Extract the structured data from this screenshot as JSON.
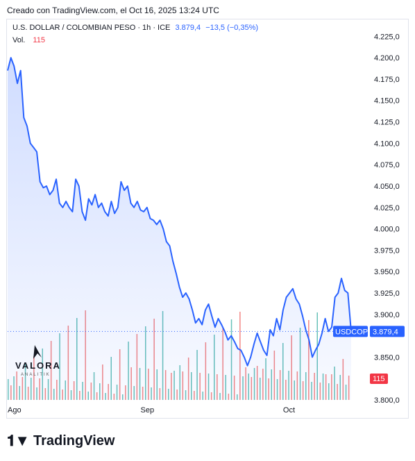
{
  "header": {
    "created": "Creado con TradingView.com, el Oct 16, 2025 13:24 UTC"
  },
  "legend": {
    "symbol": "U.S. DOLLAR / COLOMBIAN PESO · 1h · ICE",
    "last": "3.879,4",
    "change": "−13,5 (−0,35%)",
    "vol_label": "Vol.",
    "vol_value": "115"
  },
  "watermark": {
    "name": "VALORA",
    "sub": "ANALITIK"
  },
  "footer": {
    "brand": "TradingView"
  },
  "colors": {
    "line": "#2962ff",
    "area": "#dbe5fd",
    "vol_up": "#26a69a",
    "vol_down": "#ef5350",
    "badge": "#2962ff",
    "vol_badge": "#f23645"
  },
  "chart_data": {
    "type": "area",
    "symbol_badge": "USDCOP",
    "last_badge": "3.879,4",
    "vol_badge": "115",
    "ylim": [
      3800,
      4235
    ],
    "y_ticks": [
      3800,
      3825,
      3850,
      3875,
      3900,
      3925,
      3950,
      3975,
      4000,
      4025,
      4050,
      4075,
      4100,
      4125,
      4150,
      4175,
      4200,
      4225
    ],
    "y_tick_labels": [
      "3.800,0",
      "",
      "3.850,0",
      "",
      "3.900,0",
      "3.925,0",
      "3.950,0",
      "3.975,0",
      "4.000,0",
      "4.025,0",
      "4.050,0",
      "4.075,0",
      "4.100,0",
      "4.125,0",
      "4.150,0",
      "4.175,0",
      "4.200,0",
      "4.225,0"
    ],
    "x_labels": [
      {
        "label": "Ago",
        "index": 0
      },
      {
        "label": "Sep",
        "index": 41
      },
      {
        "label": "Oct",
        "index": 85
      }
    ],
    "n_points": 107,
    "values": [
      4185,
      4200,
      4190,
      4170,
      4185,
      4130,
      4120,
      4100,
      4095,
      4090,
      4055,
      4048,
      4050,
      4040,
      4045,
      4058,
      4030,
      4025,
      4032,
      4025,
      4020,
      4058,
      4050,
      4020,
      4010,
      4035,
      4028,
      4040,
      4025,
      4030,
      4020,
      4015,
      4032,
      4018,
      4025,
      4055,
      4045,
      4050,
      4030,
      4025,
      4032,
      4022,
      4020,
      4025,
      4012,
      4010,
      4005,
      4010,
      4000,
      3985,
      3980,
      3962,
      3948,
      3932,
      3920,
      3925,
      3918,
      3905,
      3890,
      3895,
      3888,
      3905,
      3912,
      3898,
      3885,
      3895,
      3888,
      3880,
      3870,
      3875,
      3868,
      3860,
      3858,
      3850,
      3840,
      3850,
      3865,
      3878,
      3868,
      3858,
      3852,
      3882,
      3875,
      3895,
      3882,
      3905,
      3920,
      3925,
      3930,
      3918,
      3912,
      3898,
      3882,
      3870,
      3850,
      3858,
      3865,
      3878,
      3895,
      3880,
      3885,
      3920,
      3925,
      3942,
      3928,
      3925,
      3880
    ],
    "volume_note": "volume bars shown on secondary scale"
  }
}
